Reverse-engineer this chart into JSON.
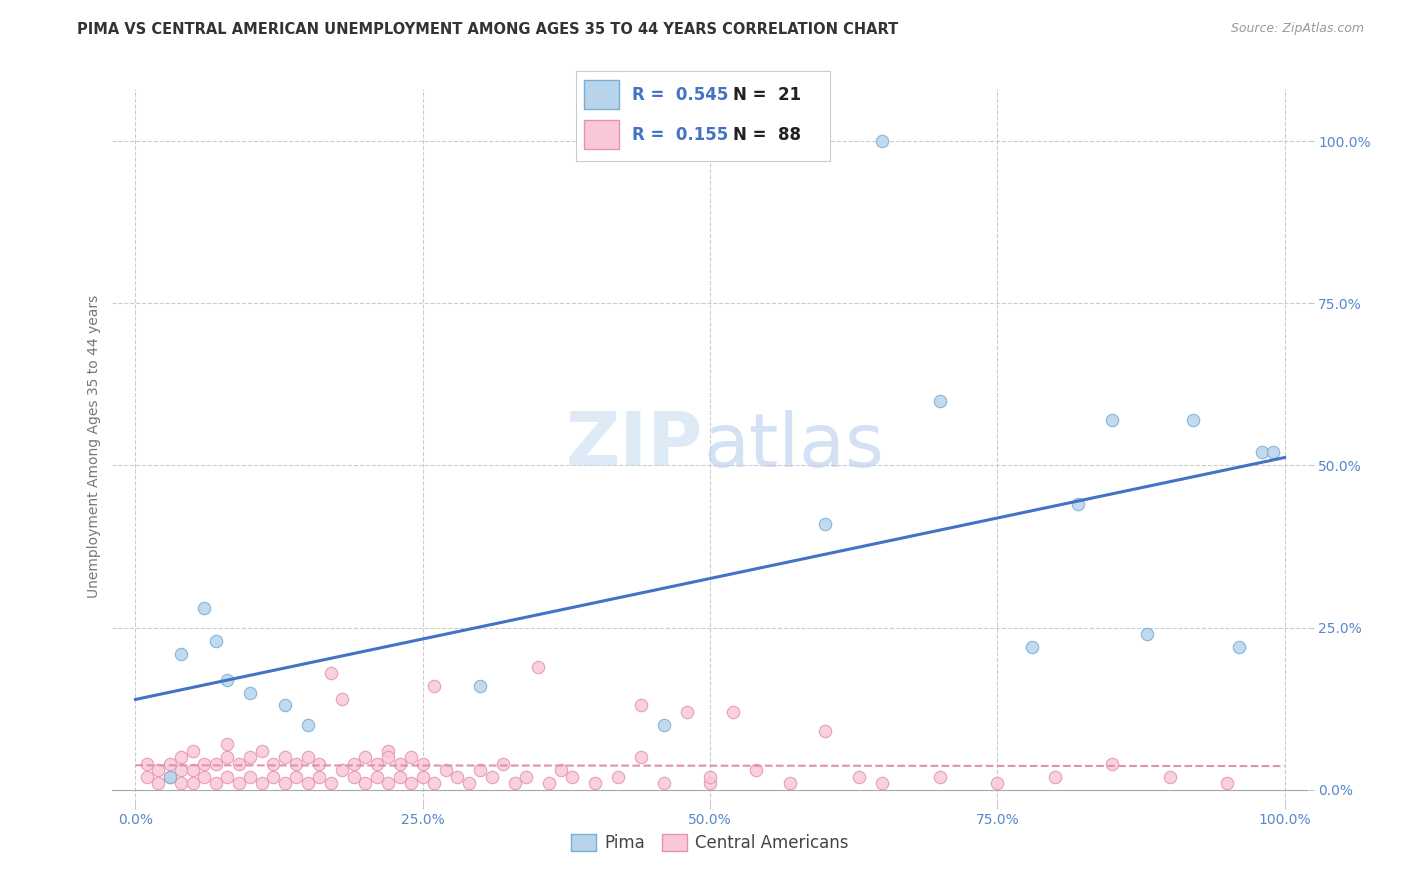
{
  "title": "PIMA VS CENTRAL AMERICAN UNEMPLOYMENT AMONG AGES 35 TO 44 YEARS CORRELATION CHART",
  "source": "Source: ZipAtlas.com",
  "ylabel": "Unemployment Among Ages 35 to 44 years",
  "xlim": [
    -0.02,
    1.02
  ],
  "ylim": [
    -0.02,
    1.08
  ],
  "xticks": [
    0.0,
    0.25,
    0.5,
    0.75,
    1.0
  ],
  "xticklabels": [
    "0.0%",
    "25.0%",
    "50.0%",
    "75.0%",
    "100.0%"
  ],
  "yticks": [
    0.0,
    0.25,
    0.5,
    0.75,
    1.0
  ],
  "yticklabels": [
    "0.0%",
    "25.0%",
    "50.0%",
    "75.0%",
    "100.0%"
  ],
  "pima_color": "#b8d4ea",
  "pima_edge_color": "#7aadd4",
  "central_color": "#f8c8d8",
  "central_edge_color": "#e890b0",
  "pima_line_color": "#4472c4",
  "central_line_color": "#e090b0",
  "pima_R": 0.545,
  "pima_N": 21,
  "central_R": 0.155,
  "central_N": 88,
  "pima_x": [
    0.03,
    0.04,
    0.06,
    0.07,
    0.08,
    0.1,
    0.13,
    0.15,
    0.65,
    0.7,
    0.82,
    0.85,
    0.88,
    0.92,
    0.96,
    0.98,
    0.3,
    0.46,
    0.6,
    0.78,
    0.99
  ],
  "pima_y": [
    0.02,
    0.21,
    0.28,
    0.23,
    0.17,
    0.15,
    0.13,
    0.1,
    1.0,
    0.6,
    0.44,
    0.57,
    0.24,
    0.57,
    0.22,
    0.52,
    0.16,
    0.1,
    0.41,
    0.22,
    0.52
  ],
  "central_x": [
    0.01,
    0.01,
    0.02,
    0.02,
    0.03,
    0.03,
    0.04,
    0.04,
    0.04,
    0.05,
    0.05,
    0.05,
    0.06,
    0.06,
    0.07,
    0.07,
    0.08,
    0.08,
    0.08,
    0.09,
    0.09,
    0.1,
    0.1,
    0.11,
    0.11,
    0.12,
    0.12,
    0.13,
    0.13,
    0.14,
    0.14,
    0.15,
    0.15,
    0.16,
    0.16,
    0.17,
    0.17,
    0.18,
    0.18,
    0.19,
    0.19,
    0.2,
    0.2,
    0.21,
    0.21,
    0.22,
    0.22,
    0.23,
    0.23,
    0.24,
    0.24,
    0.25,
    0.25,
    0.26,
    0.26,
    0.27,
    0.28,
    0.29,
    0.3,
    0.31,
    0.32,
    0.33,
    0.34,
    0.35,
    0.36,
    0.37,
    0.38,
    0.4,
    0.42,
    0.44,
    0.46,
    0.48,
    0.5,
    0.52,
    0.54,
    0.57,
    0.6,
    0.63,
    0.65,
    0.7,
    0.75,
    0.8,
    0.85,
    0.9,
    0.95,
    0.44,
    0.5,
    0.22
  ],
  "central_y": [
    0.02,
    0.04,
    0.01,
    0.03,
    0.02,
    0.04,
    0.01,
    0.03,
    0.05,
    0.01,
    0.03,
    0.06,
    0.02,
    0.04,
    0.01,
    0.04,
    0.02,
    0.05,
    0.07,
    0.01,
    0.04,
    0.02,
    0.05,
    0.01,
    0.06,
    0.02,
    0.04,
    0.01,
    0.05,
    0.02,
    0.04,
    0.01,
    0.05,
    0.02,
    0.04,
    0.01,
    0.18,
    0.03,
    0.14,
    0.04,
    0.02,
    0.01,
    0.05,
    0.02,
    0.04,
    0.01,
    0.06,
    0.02,
    0.04,
    0.01,
    0.05,
    0.02,
    0.04,
    0.01,
    0.16,
    0.03,
    0.02,
    0.01,
    0.03,
    0.02,
    0.04,
    0.01,
    0.02,
    0.19,
    0.01,
    0.03,
    0.02,
    0.01,
    0.02,
    0.13,
    0.01,
    0.12,
    0.01,
    0.12,
    0.03,
    0.01,
    0.09,
    0.02,
    0.01,
    0.02,
    0.01,
    0.02,
    0.04,
    0.02,
    0.01,
    0.05,
    0.02,
    0.05
  ],
  "watermark_zip": "ZIP",
  "watermark_atlas": "atlas",
  "background_color": "#ffffff",
  "grid_color": "#cccccc",
  "marker_size": 80,
  "title_fontsize": 10.5,
  "axis_label_fontsize": 10,
  "tick_fontsize": 10,
  "legend_fontsize": 11,
  "source_fontsize": 9
}
